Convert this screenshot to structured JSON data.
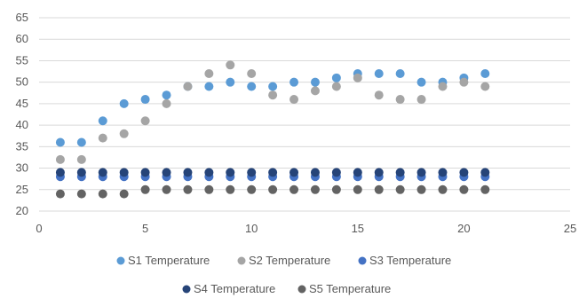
{
  "chart_data": {
    "type": "scatter",
    "title": "",
    "xlabel": "",
    "ylabel": "",
    "xlim": [
      0,
      25
    ],
    "ylim": [
      20,
      65
    ],
    "xticks": [
      0,
      5,
      10,
      15,
      20,
      25
    ],
    "yticks": [
      20,
      25,
      30,
      35,
      40,
      45,
      50,
      55,
      60,
      65
    ],
    "grid": "horizontal",
    "legend": "bottom",
    "x": [
      1,
      2,
      3,
      4,
      5,
      6,
      7,
      8,
      9,
      10,
      11,
      12,
      13,
      14,
      15,
      16,
      17,
      18,
      19,
      20,
      21
    ],
    "series": [
      {
        "name": "S1 Temperature",
        "color": "#5b9bd5",
        "values": [
          36,
          36,
          41,
          45,
          46,
          47,
          49,
          49,
          50,
          49,
          49,
          50,
          50,
          51,
          52,
          52,
          52,
          50,
          50,
          51,
          52
        ]
      },
      {
        "name": "S2 Temperature",
        "color": "#a5a5a5",
        "values": [
          32,
          32,
          37,
          38,
          41,
          45,
          49,
          52,
          54,
          52,
          47,
          46,
          48,
          49,
          51,
          47,
          46,
          46,
          49,
          50,
          49
        ]
      },
      {
        "name": "S3 Temperature",
        "color": "#4472c4",
        "values": [
          28,
          28,
          28,
          28,
          28,
          28,
          28,
          28,
          28,
          28,
          28,
          28,
          28,
          28,
          28,
          28,
          28,
          28,
          28,
          28,
          28
        ]
      },
      {
        "name": "S4 Temperature",
        "color": "#264478",
        "values": [
          29,
          29,
          29,
          29,
          29,
          29,
          29,
          29,
          29,
          29,
          29,
          29,
          29,
          29,
          29,
          29,
          29,
          29,
          29,
          29,
          29
        ]
      },
      {
        "name": "S5 Temperature",
        "color": "#636363",
        "values": [
          24,
          24,
          24,
          24,
          25,
          25,
          25,
          25,
          25,
          25,
          25,
          25,
          25,
          25,
          25,
          25,
          25,
          25,
          25,
          25,
          25
        ]
      }
    ]
  }
}
